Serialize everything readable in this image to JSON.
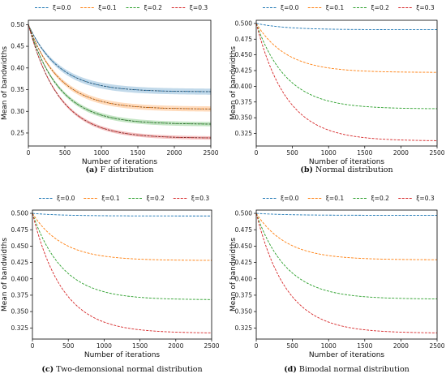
{
  "chart_data": [
    {
      "type": "line",
      "caption_letter": "(a)",
      "caption_text": " F distribution",
      "xlabel": "Number of iterations",
      "ylabel": "Mean of bandwidths",
      "xlim": [
        0,
        2500
      ],
      "ylim": [
        0.22,
        0.51
      ],
      "xticks": [
        "0",
        "500",
        "1000",
        "1500",
        "2000",
        "2500"
      ],
      "yticks": [
        "0.25",
        "0.30",
        "0.35",
        "0.40",
        "0.45",
        "0.50"
      ],
      "ytick_values": [
        0.25,
        0.3,
        0.35,
        0.4,
        0.45,
        0.5
      ],
      "legend_position": "top",
      "series": [
        {
          "name": "ξ=0.0",
          "color": "#1f77b4",
          "start": 0.5,
          "final": 0.345,
          "band": 0.007
        },
        {
          "name": "ξ=0.1",
          "color": "#ff7f0e",
          "start": 0.5,
          "final": 0.305,
          "band": 0.006
        },
        {
          "name": "ξ=0.2",
          "color": "#2ca02c",
          "start": 0.5,
          "final": 0.27,
          "band": 0.005
        },
        {
          "name": "ξ=0.3",
          "color": "#d62728",
          "start": 0.5,
          "final": 0.238,
          "band": 0.004
        }
      ]
    },
    {
      "type": "line",
      "caption_letter": "(b)",
      "caption_text": " Normal distribution",
      "xlabel": "Number of iterations",
      "ylabel": "Mean of bandwidths",
      "xlim": [
        0,
        2500
      ],
      "ylim": [
        0.305,
        0.505
      ],
      "xticks": [
        "0",
        "500",
        "1000",
        "1500",
        "2000",
        "2500"
      ],
      "yticks": [
        "0.325",
        "0.350",
        "0.375",
        "0.400",
        "0.425",
        "0.450",
        "0.475",
        "0.500"
      ],
      "ytick_values": [
        0.325,
        0.35,
        0.375,
        0.4,
        0.425,
        0.45,
        0.475,
        0.5
      ],
      "legend_position": "top",
      "series": [
        {
          "name": "ξ=0.0",
          "color": "#1f77b4",
          "start": 0.5,
          "final": 0.49,
          "band": 0
        },
        {
          "name": "ξ=0.1",
          "color": "#ff7f0e",
          "start": 0.5,
          "final": 0.422,
          "band": 0
        },
        {
          "name": "ξ=0.2",
          "color": "#2ca02c",
          "start": 0.5,
          "final": 0.364,
          "band": 0
        },
        {
          "name": "ξ=0.3",
          "color": "#d62728",
          "start": 0.5,
          "final": 0.313,
          "band": 0
        }
      ]
    },
    {
      "type": "line",
      "caption_letter": "(c)",
      "caption_text": " Two-demonsional normal distribution",
      "xlabel": "Number of iterations",
      "ylabel": "Mean of bandwidths",
      "xlim": [
        0,
        2500
      ],
      "ylim": [
        0.308,
        0.505
      ],
      "xticks": [
        "0",
        "500",
        "1000",
        "1500",
        "2000",
        "2500"
      ],
      "yticks": [
        "0.325",
        "0.350",
        "0.375",
        "0.400",
        "0.425",
        "0.450",
        "0.475",
        "0.500"
      ],
      "ytick_values": [
        0.325,
        0.35,
        0.375,
        0.4,
        0.425,
        0.45,
        0.475,
        0.5
      ],
      "legend_position": "top",
      "series": [
        {
          "name": "ξ=0.0",
          "color": "#1f77b4",
          "start": 0.5,
          "final": 0.496,
          "band": 0
        },
        {
          "name": "ξ=0.1",
          "color": "#ff7f0e",
          "start": 0.5,
          "final": 0.428,
          "band": 0
        },
        {
          "name": "ξ=0.2",
          "color": "#2ca02c",
          "start": 0.5,
          "final": 0.368,
          "band": 0
        },
        {
          "name": "ξ=0.3",
          "color": "#d62728",
          "start": 0.5,
          "final": 0.317,
          "band": 0
        }
      ]
    },
    {
      "type": "line",
      "caption_letter": "(d)",
      "caption_text": " Bimodal normal distribution",
      "xlabel": "Number of iterations",
      "ylabel": "Mean of bandwidths",
      "xlim": [
        0,
        2500
      ],
      "ylim": [
        0.308,
        0.505
      ],
      "xticks": [
        "0",
        "500",
        "1000",
        "1500",
        "2000",
        "2500"
      ],
      "yticks": [
        "0.325",
        "0.350",
        "0.375",
        "0.400",
        "0.425",
        "0.450",
        "0.475",
        "0.500"
      ],
      "ytick_values": [
        0.325,
        0.35,
        0.375,
        0.4,
        0.425,
        0.45,
        0.475,
        0.5
      ],
      "legend_position": "top",
      "series": [
        {
          "name": "ξ=0.0",
          "color": "#1f77b4",
          "start": 0.5,
          "final": 0.497,
          "band": 0
        },
        {
          "name": "ξ=0.1",
          "color": "#ff7f0e",
          "start": 0.5,
          "final": 0.429,
          "band": 0
        },
        {
          "name": "ξ=0.2",
          "color": "#2ca02c",
          "start": 0.5,
          "final": 0.369,
          "band": 0
        },
        {
          "name": "ξ=0.3",
          "color": "#d62728",
          "start": 0.5,
          "final": 0.317,
          "band": 0
        }
      ]
    }
  ]
}
